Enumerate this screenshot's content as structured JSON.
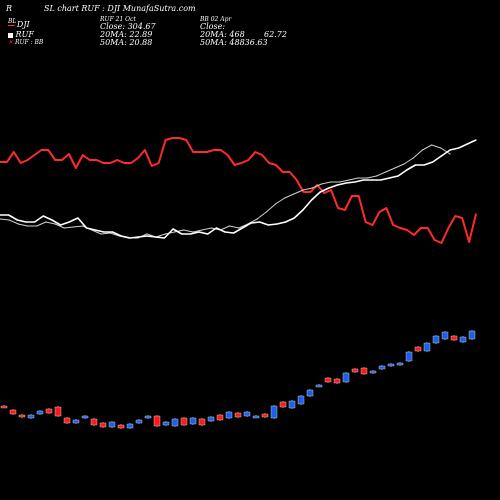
{
  "header": {
    "corner": "R",
    "title": "SL chart RUF : DJI MunafaSutra.com",
    "mid_title": "RUF 21 Oct",
    "mid_close": "Close: 304.67",
    "mid_ma20": "20MA: 22.89",
    "mid_ma50": "50MA: 20.88",
    "right_title": "BB 02 Apr",
    "right_close": "Close:",
    "right_ma20": "20MA: 468",
    "right_ma50": "50MA: 48836.63",
    "right_extra": "62.72",
    "overlay": "BL",
    "legend": [
      "DJI",
      "RUF",
      "RUF : BB"
    ]
  },
  "colors": {
    "background": "#000000",
    "ratio_line": "#ff2a2a",
    "price_line": "#ffffff",
    "ma_line": "#cfcfcf",
    "up_candle": "#1e5fe8",
    "down_candle": "#ff1a1a"
  },
  "chart_data": {
    "type": "line",
    "title": "SL chart RUF : DJI",
    "series": [
      {
        "name": "RUF",
        "values": [
          162,
          162,
          152,
          163,
          160,
          155,
          150,
          150,
          160,
          160,
          154,
          168,
          155,
          160,
          160,
          163,
          163,
          160,
          163,
          163,
          158,
          150,
          166,
          163,
          140,
          138,
          138,
          140,
          152,
          152,
          152,
          150,
          150,
          155,
          165,
          163,
          160,
          152,
          155,
          163,
          165,
          172,
          172,
          180,
          192,
          192,
          185,
          193,
          190,
          208,
          210,
          196,
          196,
          222,
          225,
          212,
          208,
          225,
          228,
          230,
          235,
          228,
          228,
          240,
          243,
          228,
          216,
          218,
          242,
          214
        ]
      },
      {
        "name": "DJI",
        "values": [
          215,
          215,
          220,
          222,
          222,
          216,
          220,
          225,
          222,
          218,
          228,
          230,
          232,
          232,
          236,
          238,
          237,
          236,
          237,
          238,
          229,
          234,
          234,
          232,
          234,
          228,
          232,
          233,
          228,
          223,
          222,
          225,
          224,
          222,
          218,
          210,
          200,
          192,
          188,
          185,
          183,
          182,
          180,
          180,
          180,
          178,
          176,
          170,
          165,
          165,
          162,
          156,
          150,
          148,
          144,
          140
        ]
      },
      {
        "name": "20MA",
        "values": [
          219,
          220,
          224,
          226,
          226,
          222,
          224,
          228,
          227,
          226,
          230,
          234,
          233,
          236,
          238,
          238,
          234,
          237,
          234,
          232,
          230,
          232,
          230,
          228,
          230,
          226,
          228,
          224,
          219,
          212,
          204,
          198,
          194,
          190,
          188,
          184,
          182,
          182,
          180,
          178,
          178,
          176,
          172,
          168,
          164,
          158,
          150,
          145,
          148,
          154
        ]
      },
      {
        "name": "Candles",
        "values": [
          {
            "o": 406,
            "c": 406,
            "h": 405,
            "l": 407,
            "up": false
          },
          {
            "o": 410,
            "c": 414,
            "h": 409,
            "l": 415,
            "up": false
          },
          {
            "o": 415,
            "c": 417,
            "h": 414,
            "l": 418,
            "up": false
          },
          {
            "o": 415,
            "c": 418,
            "h": 414,
            "l": 419,
            "up": true
          },
          {
            "o": 414,
            "c": 411,
            "h": 410,
            "l": 415,
            "up": true
          },
          {
            "o": 409,
            "c": 413,
            "h": 408,
            "l": 414,
            "up": false
          },
          {
            "o": 407,
            "c": 416,
            "h": 406,
            "l": 417,
            "up": false
          },
          {
            "o": 418,
            "c": 423,
            "h": 417,
            "l": 424,
            "up": false
          },
          {
            "o": 420,
            "c": 423,
            "h": 419,
            "l": 424,
            "up": true
          },
          {
            "o": 416,
            "c": 418,
            "h": 415,
            "l": 419,
            "up": true
          },
          {
            "o": 419,
            "c": 425,
            "h": 418,
            "l": 426,
            "up": false
          },
          {
            "o": 423,
            "c": 427,
            "h": 422,
            "l": 428,
            "up": false
          },
          {
            "o": 422,
            "c": 427,
            "h": 421,
            "l": 428,
            "up": true
          },
          {
            "o": 425,
            "c": 428,
            "h": 424,
            "l": 429,
            "up": false
          },
          {
            "o": 424,
            "c": 428,
            "h": 423,
            "l": 429,
            "up": true
          },
          {
            "o": 420,
            "c": 423,
            "h": 419,
            "l": 424,
            "up": true
          },
          {
            "o": 416,
            "c": 418,
            "h": 415,
            "l": 419,
            "up": true
          },
          {
            "o": 416,
            "c": 426,
            "h": 415,
            "l": 427,
            "up": false
          },
          {
            "o": 422,
            "c": 425,
            "h": 421,
            "l": 426,
            "up": true
          },
          {
            "o": 419,
            "c": 426,
            "h": 418,
            "l": 427,
            "up": true
          },
          {
            "o": 418,
            "c": 425,
            "h": 417,
            "l": 426,
            "up": false
          },
          {
            "o": 418,
            "c": 424,
            "h": 417,
            "l": 425,
            "up": true
          },
          {
            "o": 419,
            "c": 425,
            "h": 418,
            "l": 426,
            "up": false
          },
          {
            "o": 417,
            "c": 421,
            "h": 416,
            "l": 422,
            "up": true
          },
          {
            "o": 415,
            "c": 420,
            "h": 414,
            "l": 421,
            "up": false
          },
          {
            "o": 412,
            "c": 418,
            "h": 411,
            "l": 419,
            "up": true
          },
          {
            "o": 413,
            "c": 417,
            "h": 412,
            "l": 418,
            "up": false
          },
          {
            "o": 412,
            "c": 416,
            "h": 411,
            "l": 417,
            "up": true
          },
          {
            "o": 416,
            "c": 416,
            "h": 415,
            "l": 417,
            "up": true
          },
          {
            "o": 414,
            "c": 417,
            "h": 413,
            "l": 418,
            "up": false
          },
          {
            "o": 406,
            "c": 418,
            "h": 405,
            "l": 419,
            "up": true
          },
          {
            "o": 402,
            "c": 407,
            "h": 401,
            "l": 408,
            "up": false
          },
          {
            "o": 401,
            "c": 408,
            "h": 400,
            "l": 409,
            "up": true
          },
          {
            "o": 396,
            "c": 404,
            "h": 395,
            "l": 405,
            "up": true
          },
          {
            "o": 390,
            "c": 396,
            "h": 389,
            "l": 397,
            "up": true
          },
          {
            "o": 385,
            "c": 386,
            "h": 384,
            "l": 387,
            "up": true
          },
          {
            "o": 378,
            "c": 382,
            "h": 377,
            "l": 383,
            "up": false
          },
          {
            "o": 379,
            "c": 383,
            "h": 378,
            "l": 384,
            "up": false
          },
          {
            "o": 373,
            "c": 382,
            "h": 372,
            "l": 383,
            "up": true
          },
          {
            "o": 369,
            "c": 372,
            "h": 368,
            "l": 373,
            "up": false
          },
          {
            "o": 368,
            "c": 374,
            "h": 367,
            "l": 375,
            "up": false
          },
          {
            "o": 371,
            "c": 373,
            "h": 370,
            "l": 374,
            "up": true
          },
          {
            "o": 366,
            "c": 369,
            "h": 365,
            "l": 370,
            "up": true
          },
          {
            "o": 364,
            "c": 366,
            "h": 363,
            "l": 367,
            "up": true
          },
          {
            "o": 363,
            "c": 365,
            "h": 362,
            "l": 366,
            "up": true
          },
          {
            "o": 352,
            "c": 361,
            "h": 351,
            "l": 362,
            "up": true
          },
          {
            "o": 347,
            "c": 351,
            "h": 346,
            "l": 352,
            "up": false
          },
          {
            "o": 343,
            "c": 351,
            "h": 342,
            "l": 352,
            "up": true
          },
          {
            "o": 336,
            "c": 343,
            "h": 335,
            "l": 344,
            "up": true
          },
          {
            "o": 332,
            "c": 339,
            "h": 331,
            "l": 340,
            "up": true
          },
          {
            "o": 336,
            "c": 340,
            "h": 335,
            "l": 341,
            "up": false
          },
          {
            "o": 337,
            "c": 342,
            "h": 336,
            "l": 343,
            "up": true
          },
          {
            "o": 331,
            "c": 339,
            "h": 330,
            "l": 340,
            "up": true
          }
        ]
      }
    ]
  }
}
